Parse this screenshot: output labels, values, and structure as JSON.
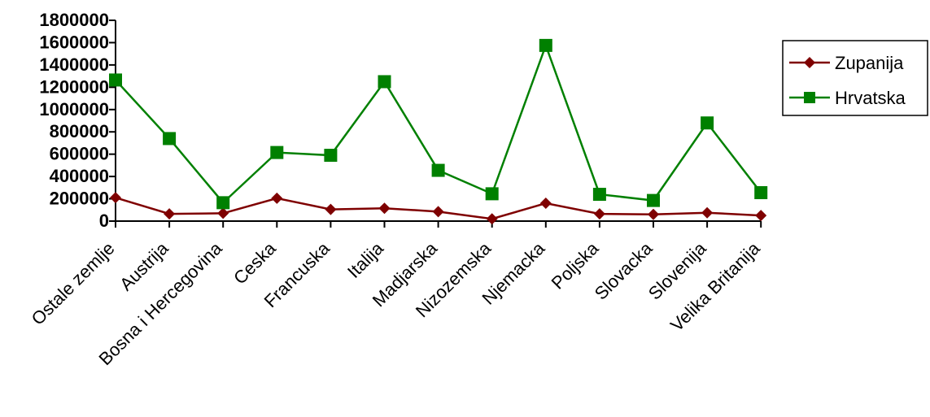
{
  "chart_data": {
    "type": "line",
    "categories": [
      "Ostale zemlje",
      "Austrija",
      "Bosna i Hercegovina",
      "Ceska",
      "Francuska",
      "Italija",
      "Madjarska",
      "Nizozemska",
      "Njemacka",
      "Poljska",
      "Slovacka",
      "Slovenija",
      "Velika Britanija"
    ],
    "series": [
      {
        "name": "Zupanija",
        "color": "#7f0000",
        "marker": "diamond",
        "values": [
          210000,
          65000,
          70000,
          205000,
          105000,
          115000,
          85000,
          20000,
          160000,
          65000,
          60000,
          75000,
          50000
        ]
      },
      {
        "name": "Hrvatska",
        "color": "#008000",
        "marker": "square",
        "values": [
          1265000,
          740000,
          165000,
          615000,
          590000,
          1250000,
          455000,
          245000,
          1575000,
          240000,
          185000,
          880000,
          255000
        ]
      }
    ],
    "y_ticks": [
      "0",
      "200000",
      "400000",
      "600000",
      "800000",
      "1000000",
      "1200000",
      "1400000",
      "1600000",
      "1800000"
    ],
    "ylim": [
      0,
      1800000
    ],
    "legend_position": "right",
    "grid": false
  }
}
